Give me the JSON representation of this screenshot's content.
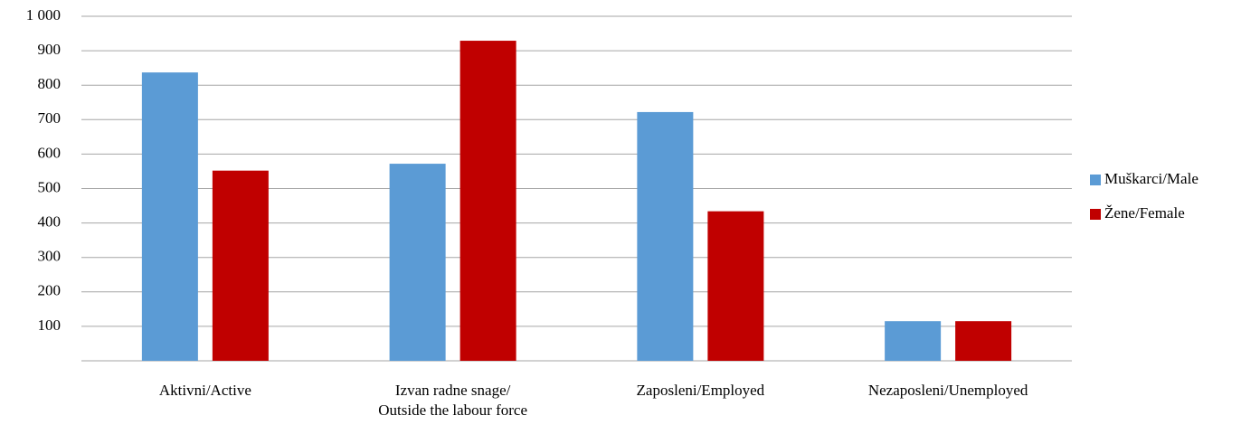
{
  "chart_data": {
    "type": "bar",
    "categories": [
      "Aktivni/Active",
      "Izvan radne snage/\nOutside the labour force",
      "Zaposleni/Employed",
      "Nezaposleni/Unemployed"
    ],
    "series": [
      {
        "name": "Muškarci/Male",
        "color": "#5b9bd5",
        "values": [
          837,
          572,
          722,
          115
        ]
      },
      {
        "name": "Žene/Female",
        "color": "#c00000",
        "values": [
          552,
          929,
          434,
          115
        ]
      }
    ],
    "ylim": [
      0,
      1000
    ],
    "yticks": [
      100,
      200,
      300,
      400,
      500,
      600,
      700,
      800,
      900,
      {
        "value": 1000,
        "label": "1 000"
      }
    ],
    "grid": true,
    "legend": "right"
  }
}
